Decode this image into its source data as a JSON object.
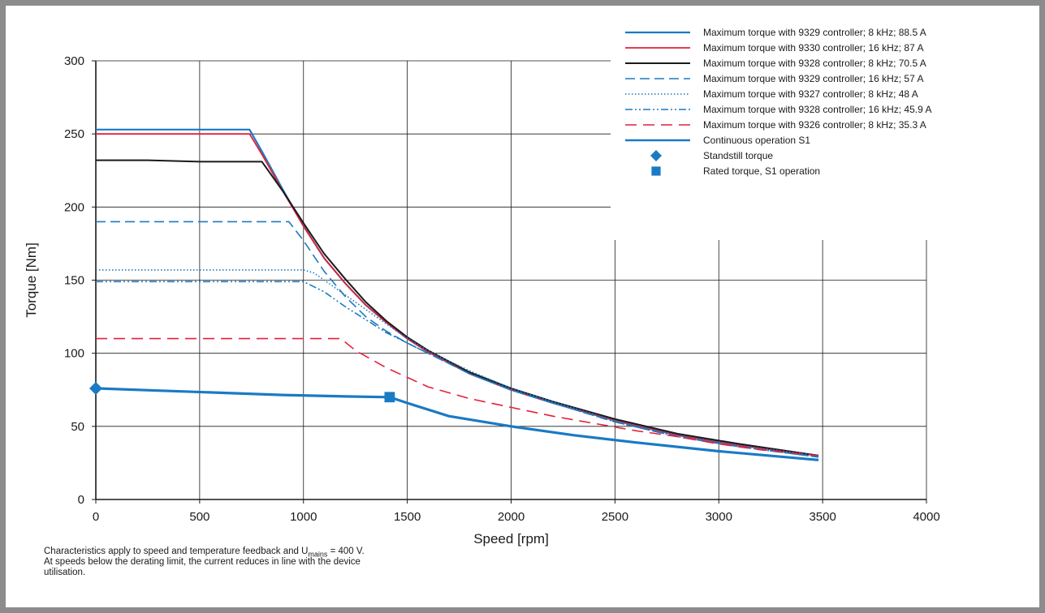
{
  "footnote": {
    "line1_pre": "Characteristics apply to speed and temperature feedback and U",
    "line1_sub": "mains",
    "line1_post": " = 400 V.",
    "line2": "At speeds below the derating limit, the current reduces in line with the device utilisation."
  },
  "chart_data": {
    "type": "line",
    "title": "",
    "xlabel": "Speed [rpm]",
    "ylabel": "Torque [Nm]",
    "xlim": [
      0,
      4000
    ],
    "ylim": [
      0,
      300
    ],
    "xticks": [
      "0",
      "500",
      "1000",
      "1500",
      "2000",
      "2500",
      "3000",
      "3500",
      "4000"
    ],
    "yticks": [
      "0",
      "50",
      "100",
      "150",
      "200",
      "250",
      "300"
    ],
    "grid": true,
    "legend_position": "top-right",
    "series": [
      {
        "name": "Maximum torque with 9329 controller; 8 kHz; 88.5 A",
        "color": "#1a7ac4",
        "style": "solid",
        "width": 2.2,
        "points": [
          [
            0,
            253
          ],
          [
            740,
            253
          ],
          [
            800,
            238
          ],
          [
            900,
            212
          ],
          [
            1000,
            187
          ],
          [
            1100,
            165
          ],
          [
            1200,
            148
          ],
          [
            1300,
            133
          ],
          [
            1400,
            121
          ],
          [
            1500,
            110
          ],
          [
            1600,
            101
          ],
          [
            1800,
            86
          ],
          [
            2000,
            75
          ],
          [
            2200,
            66
          ],
          [
            2500,
            54
          ],
          [
            2800,
            44
          ],
          [
            3100,
            37
          ],
          [
            3480,
            30
          ]
        ]
      },
      {
        "name": "Maximum torque with 9330 controller; 16 kHz; 87 A",
        "color": "#e3213a",
        "style": "solid",
        "width": 1.8,
        "points": [
          [
            0,
            250
          ],
          [
            740,
            250
          ],
          [
            800,
            236
          ],
          [
            900,
            211
          ],
          [
            1000,
            187
          ],
          [
            1100,
            165
          ],
          [
            1200,
            148
          ],
          [
            1300,
            133
          ],
          [
            1400,
            121
          ],
          [
            1500,
            110
          ],
          [
            1600,
            101
          ],
          [
            1800,
            86
          ],
          [
            2000,
            75
          ],
          [
            2200,
            66
          ],
          [
            2500,
            54
          ],
          [
            2800,
            44
          ],
          [
            3100,
            37
          ],
          [
            3480,
            30
          ]
        ]
      },
      {
        "name": "Maximum torque with 9328 controller; 8 kHz; 70.5 A",
        "color": "#1a1a1a",
        "style": "solid",
        "width": 2,
        "points": [
          [
            0,
            232
          ],
          [
            250,
            232
          ],
          [
            500,
            231
          ],
          [
            800,
            231
          ],
          [
            900,
            211
          ],
          [
            1000,
            189
          ],
          [
            1100,
            168
          ],
          [
            1200,
            151
          ],
          [
            1300,
            135
          ],
          [
            1400,
            122
          ],
          [
            1500,
            111
          ],
          [
            1600,
            102
          ],
          [
            1800,
            87
          ],
          [
            2000,
            76
          ],
          [
            2200,
            67
          ],
          [
            2500,
            55
          ],
          [
            2800,
            45
          ],
          [
            3100,
            38
          ],
          [
            3480,
            30
          ]
        ]
      },
      {
        "name": "Maximum torque with 9329 controller; 16 kHz; 57 A",
        "color": "#1a7ac4",
        "style": "dash",
        "width": 1.6,
        "points": [
          [
            0,
            190
          ],
          [
            930,
            190
          ],
          [
            1000,
            177
          ],
          [
            1100,
            156
          ],
          [
            1200,
            139
          ],
          [
            1300,
            125
          ],
          [
            1400,
            115
          ],
          [
            1500,
            107
          ],
          [
            1600,
            100
          ],
          [
            1800,
            86
          ],
          [
            2000,
            75
          ],
          [
            2200,
            66
          ],
          [
            2500,
            53
          ],
          [
            2800,
            43
          ],
          [
            3100,
            36
          ],
          [
            3480,
            29
          ]
        ]
      },
      {
        "name": "Maximum torque with 9327 controller; 8 kHz; 48 A",
        "color": "#1a7ac4",
        "style": "dot",
        "width": 1.6,
        "points": [
          [
            0,
            157
          ],
          [
            1000,
            157
          ],
          [
            1050,
            155
          ],
          [
            1150,
            145
          ],
          [
            1250,
            135
          ],
          [
            1350,
            125
          ],
          [
            1450,
            115
          ],
          [
            1550,
            106
          ],
          [
            1650,
            98
          ],
          [
            1800,
            88
          ],
          [
            2000,
            76
          ],
          [
            2200,
            67
          ],
          [
            2500,
            54
          ],
          [
            2800,
            44
          ],
          [
            3100,
            37
          ],
          [
            3480,
            30
          ]
        ]
      },
      {
        "name": "Maximum torque with 9328 controller; 16 kHz; 45.9 A",
        "color": "#1a7ac4",
        "style": "dashdotdot",
        "width": 1.6,
        "points": [
          [
            0,
            149
          ],
          [
            500,
            149
          ],
          [
            1000,
            149
          ],
          [
            1100,
            142
          ],
          [
            1200,
            132
          ],
          [
            1300,
            123
          ],
          [
            1400,
            114
          ],
          [
            1500,
            107
          ],
          [
            1600,
            100
          ],
          [
            1800,
            86
          ],
          [
            2000,
            75
          ],
          [
            2200,
            66
          ],
          [
            2500,
            53
          ],
          [
            2800,
            43
          ],
          [
            3100,
            36
          ],
          [
            3480,
            29
          ]
        ]
      },
      {
        "name": "Maximum torque with 9326 controller; 8 kHz; 35.3 A",
        "color": "#e3213a",
        "style": "longdash",
        "width": 1.6,
        "points": [
          [
            0,
            110
          ],
          [
            1180,
            110
          ],
          [
            1250,
            102
          ],
          [
            1400,
            90
          ],
          [
            1600,
            77
          ],
          [
            1800,
            69
          ],
          [
            2000,
            63
          ],
          [
            2200,
            57
          ],
          [
            2400,
            52
          ],
          [
            2600,
            47
          ],
          [
            2800,
            43
          ],
          [
            3000,
            38
          ],
          [
            3200,
            34
          ],
          [
            3480,
            30
          ]
        ]
      },
      {
        "name": "Continuous operation S1",
        "color": "#1a7ac4",
        "style": "solid",
        "width": 3.2,
        "points": [
          [
            0,
            76
          ],
          [
            300,
            74.5
          ],
          [
            600,
            73
          ],
          [
            900,
            71.5
          ],
          [
            1200,
            70.5
          ],
          [
            1415,
            70
          ],
          [
            1500,
            66
          ],
          [
            1700,
            57
          ],
          [
            2000,
            50
          ],
          [
            2300,
            44
          ],
          [
            2600,
            39
          ],
          [
            3000,
            33
          ],
          [
            3480,
            27
          ]
        ]
      }
    ],
    "markers": [
      {
        "name": "Standstill torque",
        "shape": "diamond",
        "color": "#1a7ac4",
        "x": 0,
        "y": 76
      },
      {
        "name": "Rated torque, S1 operation",
        "shape": "square",
        "color": "#1a7ac4",
        "x": 1415,
        "y": 70
      }
    ]
  }
}
